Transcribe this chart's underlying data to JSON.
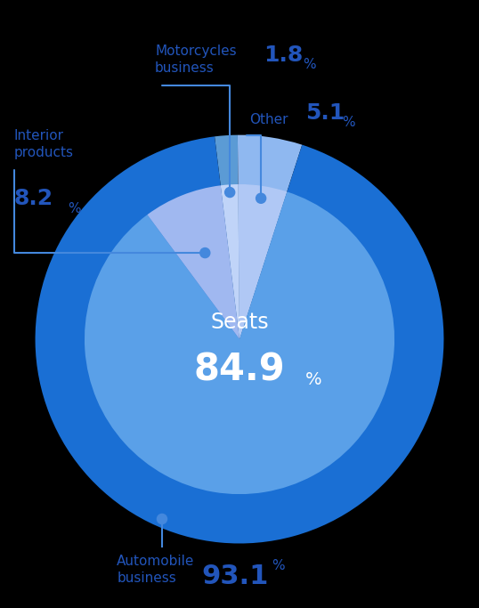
{
  "background_color": "#000000",
  "outer_vals": [
    1.8,
    5.1,
    93.1
  ],
  "outer_colors": [
    "#5b9bd5",
    "#8fb8f0",
    "#1a6fd4"
  ],
  "inner_vals": [
    1.8,
    5.1,
    84.9,
    8.2
  ],
  "inner_colors": [
    "#c0d4f8",
    "#b0c8f5",
    "#5aa0e8",
    "#a0b8f0"
  ],
  "seats_label": "Seats",
  "seats_pct": "84.9",
  "seats_pct_small": "%",
  "label_color": "#2255bb",
  "line_color": "#4488dd",
  "start_angle": 97,
  "total": 100.0,
  "moto_label": "Motorcycles\nbusiness",
  "moto_pct": "1.8",
  "other_label": "Other",
  "other_pct": "5.1",
  "interior_label": "Interior\nproducts",
  "interior_pct": "8.2",
  "auto_label": "Automobile\nbusiness",
  "auto_pct": "93.1"
}
